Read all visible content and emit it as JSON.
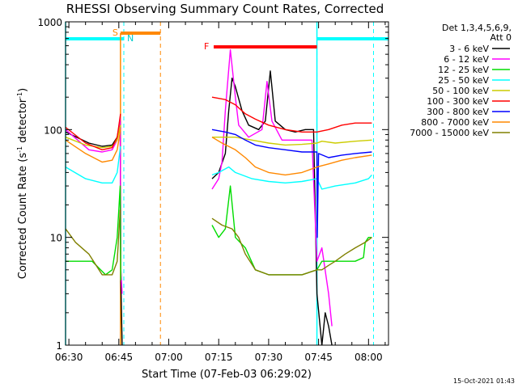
{
  "chart_data": {
    "type": "line",
    "title": "RHESSI Observing Summary Count Rates, Corrected",
    "xlabel": "Start Time (07-Feb-03 06:29:02)",
    "ylabel_main": "Corrected Count Rate (s",
    "ylabel_sup1": "-1",
    "ylabel_mid": " detector",
    "ylabel_sup2": "-1",
    "ylabel_end": ")",
    "yscale": "log",
    "ylim": [
      1,
      1000
    ],
    "xlim_minutes": [
      389,
      486
    ],
    "x_ticks": [
      {
        "label": "06:30",
        "minutes": 390
      },
      {
        "label": "06:45",
        "minutes": 405
      },
      {
        "label": "07:00",
        "minutes": 420
      },
      {
        "label": "07:15",
        "minutes": 435
      },
      {
        "label": "07:30",
        "minutes": 450
      },
      {
        "label": "07:45",
        "minutes": 465
      },
      {
        "label": "08:00",
        "minutes": 480
      }
    ],
    "y_ticks": [
      {
        "label": "1",
        "value": 1
      },
      {
        "label": "10",
        "value": 10
      },
      {
        "label": "100",
        "value": 100
      },
      {
        "label": "1000",
        "value": 1000
      }
    ],
    "legend_header_1": "Det 1,3,4,5,6,9,",
    "legend_header_2": "Att 0",
    "legend_position": "right",
    "series": [
      {
        "name": "3 - 6 keV",
        "color": "#000000",
        "segments": [
          [
            [
              389,
              95
            ],
            [
              396,
              75
            ],
            [
              400,
              70
            ],
            [
              403,
              72
            ],
            [
              404.5,
              85
            ],
            [
              405.4,
              120
            ],
            [
              405.6,
              4
            ],
            [
              406,
              1
            ]
          ],
          [
            [
              433,
              35
            ],
            [
              435,
              40
            ],
            [
              437,
              60
            ],
            [
              438,
              150
            ],
            [
              439,
              300
            ],
            [
              440,
              250
            ],
            [
              442,
              150
            ],
            [
              444,
              110
            ],
            [
              447,
              100
            ],
            [
              449,
              120
            ],
            [
              450.5,
              350
            ],
            [
              452,
              120
            ],
            [
              455,
              100
            ],
            [
              458,
              95
            ],
            [
              461,
              100
            ],
            [
              463.5,
              100
            ],
            [
              464.5,
              3
            ],
            [
              466,
              1
            ]
          ],
          [
            [
              466,
              1
            ],
            [
              467,
              2
            ],
            [
              468,
              1.5
            ],
            [
              469,
              1
            ]
          ]
        ]
      },
      {
        "name": "6 - 12 keV",
        "color": "#ff00ff",
        "segments": [
          [
            [
              389,
              100
            ],
            [
              396,
              65
            ],
            [
              400,
              62
            ],
            [
              403,
              65
            ],
            [
              404.5,
              80
            ],
            [
              405.4,
              130
            ],
            [
              405.6,
              5
            ],
            [
              406,
              3
            ]
          ],
          [
            [
              433,
              28
            ],
            [
              435,
              35
            ],
            [
              436,
              50
            ],
            [
              437,
              150
            ],
            [
              438.5,
              550
            ],
            [
              440,
              200
            ],
            [
              441,
              110
            ],
            [
              444,
              85
            ],
            [
              448,
              100
            ],
            [
              449.5,
              280
            ],
            [
              451,
              120
            ],
            [
              454,
              80
            ],
            [
              458,
              80
            ],
            [
              463,
              80
            ],
            [
              464.5,
              6
            ],
            [
              466,
              8
            ],
            [
              468,
              3
            ],
            [
              469,
              1.5
            ]
          ]
        ]
      },
      {
        "name": "12 - 25 keV",
        "color": "#00dd00",
        "segments": [
          [
            [
              389,
              6
            ],
            [
              397,
              6
            ],
            [
              401,
              4.5
            ],
            [
              403,
              5
            ],
            [
              404.5,
              10
            ],
            [
              405.4,
              30
            ],
            [
              405.6,
              4
            ]
          ],
          [
            [
              433,
              13
            ],
            [
              435,
              10
            ],
            [
              437,
              12
            ],
            [
              438.5,
              30
            ],
            [
              440,
              10
            ],
            [
              443,
              8
            ],
            [
              446,
              5
            ],
            [
              450,
              4.5
            ],
            [
              455,
              4.5
            ],
            [
              460,
              4.5
            ],
            [
              464.5,
              5
            ],
            [
              466,
              6
            ],
            [
              470,
              6
            ],
            [
              476,
              6
            ],
            [
              478.5,
              6.5
            ],
            [
              479,
              9
            ],
            [
              480,
              10
            ],
            [
              481,
              10
            ]
          ]
        ]
      },
      {
        "name": "25 - 50 keV",
        "color": "#00ffff",
        "segments": [
          [
            [
              389,
              45
            ],
            [
              395,
              35
            ],
            [
              400,
              32
            ],
            [
              403,
              32
            ],
            [
              404.5,
              40
            ],
            [
              405.5,
              70
            ]
          ],
          [
            [
              433,
              38
            ],
            [
              435,
              40
            ],
            [
              438,
              45
            ],
            [
              440,
              40
            ],
            [
              445,
              35
            ],
            [
              450,
              33
            ],
            [
              455,
              32
            ],
            [
              460,
              33
            ],
            [
              464.5,
              35
            ],
            [
              466,
              28
            ],
            [
              470,
              30
            ],
            [
              476,
              32
            ],
            [
              480,
              35
            ],
            [
              481,
              38
            ]
          ]
        ]
      },
      {
        "name": "50 - 100 keV",
        "color": "#cccc00",
        "segments": [
          [
            [
              389,
              85
            ],
            [
              395,
              72
            ],
            [
              400,
              68
            ],
            [
              403,
              70
            ],
            [
              404.5,
              80
            ],
            [
              405.5,
              110
            ]
          ],
          [
            [
              433,
              85
            ],
            [
              436,
              85
            ],
            [
              440,
              85
            ],
            [
              445,
              80
            ],
            [
              450,
              75
            ],
            [
              455,
              72
            ],
            [
              460,
              73
            ],
            [
              464.5,
              75
            ],
            [
              466,
              78
            ],
            [
              470,
              75
            ],
            [
              476,
              78
            ],
            [
              481,
              80
            ]
          ]
        ]
      },
      {
        "name": "100 - 300 keV",
        "color": "#ff0000",
        "segments": [
          [
            [
              389,
              105
            ],
            [
              395,
              75
            ],
            [
              400,
              65
            ],
            [
              403,
              68
            ],
            [
              404.5,
              85
            ],
            [
              405.5,
              140
            ]
          ],
          [
            [
              433,
              200
            ],
            [
              437,
              190
            ],
            [
              440,
              170
            ],
            [
              443,
              140
            ],
            [
              446,
              125
            ],
            [
              450,
              110
            ],
            [
              455,
              100
            ],
            [
              460,
              95
            ],
            [
              464.5,
              95
            ],
            [
              468,
              100
            ],
            [
              472,
              110
            ],
            [
              476,
              115
            ],
            [
              481,
              115
            ]
          ]
        ]
      },
      {
        "name": "300 - 800 keV",
        "color": "#0000ff",
        "segments": [
          [
            [
              433,
              100
            ],
            [
              437,
              95
            ],
            [
              440,
              90
            ],
            [
              443,
              80
            ],
            [
              446,
              72
            ],
            [
              450,
              68
            ],
            [
              455,
              65
            ],
            [
              460,
              62
            ],
            [
              464.5,
              62
            ],
            [
              464.6,
              10
            ],
            [
              465,
              60
            ],
            [
              468,
              55
            ],
            [
              472,
              58
            ],
            [
              476,
              60
            ],
            [
              481,
              62
            ]
          ]
        ]
      },
      {
        "name": "800 - 7000 keV",
        "color": "#ff8800",
        "segments": [
          [
            [
              389,
              80
            ],
            [
              395,
              60
            ],
            [
              400,
              50
            ],
            [
              403,
              52
            ],
            [
              404.5,
              65
            ],
            [
              405.5,
              100
            ]
          ],
          [
            [
              433,
              85
            ],
            [
              436,
              75
            ],
            [
              440,
              65
            ],
            [
              443,
              55
            ],
            [
              446,
              45
            ],
            [
              450,
              40
            ],
            [
              455,
              38
            ],
            [
              460,
              40
            ],
            [
              464.5,
              45
            ],
            [
              468,
              48
            ],
            [
              472,
              52
            ],
            [
              476,
              55
            ],
            [
              481,
              58
            ]
          ]
        ]
      },
      {
        "name": "7000 - 15000 keV",
        "color": "#808000",
        "segments": [
          [
            [
              389,
              12
            ],
            [
              392,
              9
            ],
            [
              396,
              7
            ],
            [
              400,
              4.5
            ],
            [
              403,
              4.5
            ],
            [
              404.5,
              6
            ],
            [
              405.4,
              18
            ]
          ],
          [
            [
              433,
              15
            ],
            [
              436,
              13
            ],
            [
              439,
              12
            ],
            [
              441,
              10
            ],
            [
              443,
              7
            ],
            [
              446,
              5
            ],
            [
              450,
              4.5
            ],
            [
              455,
              4.5
            ],
            [
              460,
              4.5
            ],
            [
              464.5,
              5
            ],
            [
              466,
              5
            ],
            [
              468,
              5.5
            ],
            [
              470,
              6
            ],
            [
              473,
              7
            ],
            [
              476,
              8
            ],
            [
              479,
              9
            ],
            [
              481,
              10
            ]
          ]
        ]
      }
    ],
    "annotations": {
      "saa_label": "S",
      "night_label": "N",
      "flare_label": "F",
      "saa_interval_minutes": [
        405.5,
        417.5
      ],
      "flare_interval_minutes": [
        433.5,
        464.5
      ],
      "night_intervals_minutes": [
        [
          389,
          406.5
        ],
        [
          464.5,
          486
        ]
      ],
      "dashed_lines_minutes": [
        {
          "minutes": 406.5,
          "color": "#00ffff"
        },
        {
          "minutes": 417.5,
          "color": "#ff8800"
        },
        {
          "minutes": 464.5,
          "color": "#00ffff"
        },
        {
          "minutes": 481.5,
          "color": "#00ffff"
        }
      ]
    },
    "grid": false
  },
  "footer": {
    "timestamp": "15-Oct-2021 01:43"
  }
}
